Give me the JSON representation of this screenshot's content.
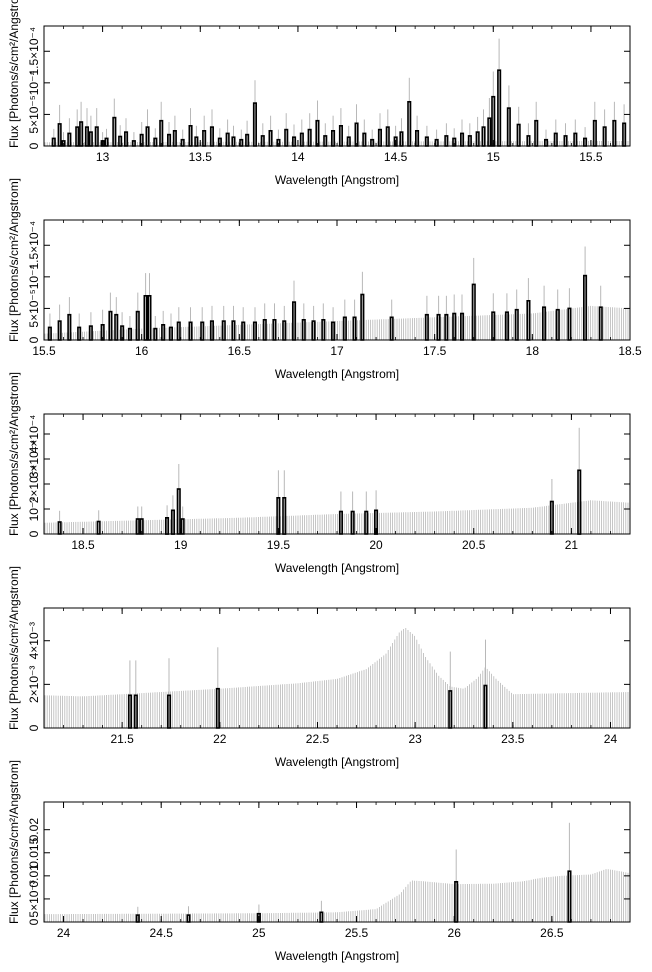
{
  "figure": {
    "xlabel": "Wavelength [Angstrom]",
    "ylabel": "Flux [Photons/s/cm²/Angstrom]",
    "colors": {
      "data": "#000000",
      "error_bar": "#b8b8b8",
      "frame": "#000000"
    }
  },
  "chart_data": [
    {
      "type": "bar",
      "panel": 1,
      "xlabel": "Wavelength [Angstrom]",
      "ylabel": "Flux [Photons/s/cm²/Angstrom]",
      "xlim": [
        12.7,
        15.7
      ],
      "ylim": [
        0,
        0.00019
      ],
      "xticks": [
        13,
        13.5,
        14,
        14.5,
        15,
        15.5
      ],
      "xtick_labels": [
        "13",
        "13.5",
        "14",
        "14.5",
        "15",
        "15.5"
      ],
      "yticks": [
        0,
        5e-05,
        0.0001,
        0.00015
      ],
      "ytick_labels": [
        "0",
        "5×10⁻⁵",
        "10⁻⁴",
        "1.5×10⁻⁴"
      ],
      "grid": false,
      "x": [
        12.75,
        12.78,
        12.8,
        12.83,
        12.87,
        12.89,
        12.92,
        12.94,
        12.97,
        13.0,
        13.02,
        13.06,
        13.09,
        13.12,
        13.16,
        13.2,
        13.23,
        13.27,
        13.3,
        13.34,
        13.37,
        13.41,
        13.45,
        13.48,
        13.52,
        13.56,
        13.6,
        13.64,
        13.67,
        13.71,
        13.74,
        13.78,
        13.82,
        13.86,
        13.9,
        13.94,
        13.98,
        14.02,
        14.06,
        14.1,
        14.14,
        14.18,
        14.22,
        14.26,
        14.3,
        14.34,
        14.38,
        14.42,
        14.46,
        14.5,
        14.53,
        14.57,
        14.61,
        14.66,
        14.71,
        14.76,
        14.8,
        14.84,
        14.88,
        14.92,
        14.95,
        14.98,
        15.0,
        15.03,
        15.08,
        15.13,
        15.18,
        15.22,
        15.27,
        15.32,
        15.37,
        15.42,
        15.47,
        15.52,
        15.57,
        15.62,
        15.67
      ],
      "values": [
        1.2e-05,
        3.5e-05,
        8e-06,
        2e-05,
        3e-05,
        3.8e-05,
        3e-05,
        2.2e-05,
        3e-05,
        8e-06,
        1.2e-05,
        4.5e-05,
        1.5e-05,
        2.2e-05,
        8e-06,
        1.8e-05,
        3e-05,
        1.2e-05,
        4e-05,
        1.8e-05,
        2.4e-05,
        1e-05,
        3.2e-05,
        1.4e-05,
        2.4e-05,
        3e-05,
        1.2e-05,
        2e-05,
        1.4e-05,
        1e-05,
        1.8e-05,
        6.8e-05,
        1.6e-05,
        2.4e-05,
        1e-05,
        2.6e-05,
        1.4e-05,
        2e-05,
        2.6e-05,
        4e-05,
        1.6e-05,
        2.4e-05,
        3.2e-05,
        1.4e-05,
        3.6e-05,
        2e-05,
        1e-05,
        2.6e-05,
        3e-05,
        1.4e-05,
        2.2e-05,
        7e-05,
        2.4e-05,
        1.4e-05,
        1e-05,
        1.6e-05,
        1.2e-05,
        2e-05,
        1.6e-05,
        2.2e-05,
        3e-05,
        4.4e-05,
        7.8e-05,
        0.00012,
        6e-05,
        3.4e-05,
        1.6e-05,
        4e-05,
        1e-05,
        2e-05,
        1.6e-05,
        2e-05,
        1.2e-05,
        4e-05,
        3e-05,
        4e-05,
        3.6e-05
      ],
      "errors": [
        1.5e-05,
        3e-05,
        1.4e-05,
        2.4e-05,
        2.8e-05,
        3.2e-05,
        3e-05,
        2.6e-05,
        3e-05,
        1.4e-05,
        1.5e-05,
        3e-05,
        1.8e-05,
        2.2e-05,
        1.4e-05,
        2e-05,
        2.8e-05,
        1.6e-05,
        3e-05,
        2e-05,
        2.4e-05,
        1.6e-05,
        2.8e-05,
        1.8e-05,
        2.4e-05,
        2.8e-05,
        1.6e-05,
        2.2e-05,
        1.8e-05,
        1.6e-05,
        2.2e-05,
        3.6e-05,
        2e-05,
        2.4e-05,
        1.6e-05,
        2.6e-05,
        2e-05,
        2.2e-05,
        2.6e-05,
        3.2e-05,
        2e-05,
        2.4e-05,
        2.8e-05,
        1.8e-05,
        3e-05,
        2.2e-05,
        1.6e-05,
        2.6e-05,
        2.8e-05,
        1.8e-05,
        2.2e-05,
        3.8e-05,
        2.4e-05,
        1.8e-05,
        1.6e-05,
        2e-05,
        1.6e-05,
        2.2e-05,
        2e-05,
        2.4e-05,
        2.8e-05,
        3.2e-05,
        4e-05,
        5e-05,
        3.6e-05,
        2.8e-05,
        2e-05,
        3e-05,
        1.6e-05,
        2.2e-05,
        2e-05,
        2.2e-05,
        1.8e-05,
        3e-05,
        2.8e-05,
        3e-05,
        3e-05
      ],
      "background": {
        "x": [
          12.7,
          15.7
        ],
        "values": [
          6e-06,
          8e-06
        ]
      }
    },
    {
      "type": "bar",
      "panel": 2,
      "xlabel": "Wavelength [Angstrom]",
      "ylabel": "Flux [Photons/s/cm²/Angstrom]",
      "xlim": [
        15.5,
        18.5
      ],
      "ylim": [
        0,
        0.00019
      ],
      "xticks": [
        15.5,
        16,
        16.5,
        17,
        17.5,
        18,
        18.5
      ],
      "xtick_labels": [
        "15.5",
        "16",
        "16.5",
        "17",
        "17.5",
        "18",
        "18.5"
      ],
      "yticks": [
        0,
        5e-05,
        0.0001,
        0.00015
      ],
      "ytick_labels": [
        "0",
        "5×10⁻⁵",
        "10⁻⁴",
        "1.5×10⁻⁴"
      ],
      "grid": false,
      "x": [
        15.53,
        15.58,
        15.63,
        15.68,
        15.74,
        15.8,
        15.84,
        15.87,
        15.9,
        15.94,
        15.98,
        16.02,
        16.04,
        16.07,
        16.11,
        16.15,
        16.19,
        16.25,
        16.31,
        16.36,
        16.42,
        16.47,
        16.52,
        16.58,
        16.63,
        16.68,
        16.73,
        16.78,
        16.83,
        16.88,
        16.93,
        16.98,
        17.04,
        17.09,
        17.13,
        17.28,
        17.46,
        17.52,
        17.56,
        17.6,
        17.64,
        17.7,
        17.8,
        17.87,
        17.92,
        17.98,
        18.06,
        18.13,
        18.19,
        18.27,
        18.35
      ],
      "values": [
        2e-05,
        3e-05,
        4e-05,
        2e-05,
        2.2e-05,
        2.4e-05,
        4.5e-05,
        4e-05,
        2.2e-05,
        1.8e-05,
        4.5e-05,
        7e-05,
        7e-05,
        1.8e-05,
        2.4e-05,
        2e-05,
        2.8e-05,
        2.8e-05,
        2.8e-05,
        3e-05,
        3e-05,
        3e-05,
        2.8e-05,
        2.8e-05,
        3.2e-05,
        3.2e-05,
        3e-05,
        6e-05,
        3.2e-05,
        3e-05,
        3.2e-05,
        2.8e-05,
        3.6e-05,
        3.6e-05,
        7.2e-05,
        3.6e-05,
        4e-05,
        4e-05,
        4e-05,
        4.2e-05,
        4.2e-05,
        8.8e-05,
        4.4e-05,
        4.4e-05,
        4.8e-05,
        6.2e-05,
        5.2e-05,
        4.8e-05,
        5e-05,
        0.000102,
        5.2e-05
      ],
      "errors": [
        2.2e-05,
        2.6e-05,
        2.8e-05,
        2.2e-05,
        2.2e-05,
        2.4e-05,
        3e-05,
        2.8e-05,
        2.2e-05,
        2e-05,
        3e-05,
        3.6e-05,
        3.6e-05,
        2e-05,
        2.2e-05,
        2.2e-05,
        2.4e-05,
        2.4e-05,
        2.4e-05,
        2.4e-05,
        2.4e-05,
        2.4e-05,
        2.4e-05,
        2.4e-05,
        2.6e-05,
        2.6e-05,
        2.4e-05,
        3.4e-05,
        2.6e-05,
        2.4e-05,
        2.6e-05,
        2.4e-05,
        2.8e-05,
        2.8e-05,
        3.6e-05,
        2.8e-05,
        3e-05,
        3e-05,
        3e-05,
        3e-05,
        3e-05,
        4.2e-05,
        3e-05,
        3e-05,
        3.2e-05,
        3.6e-05,
        3.4e-05,
        3.2e-05,
        3.2e-05,
        4.6e-05,
        3.4e-05
      ],
      "background": {
        "x": [
          15.5,
          16.0,
          16.5,
          17.0,
          17.5,
          18.0,
          18.3,
          18.5
        ],
        "values": [
          1e-05,
          1.8e-05,
          2.4e-05,
          3e-05,
          3.6e-05,
          4.2e-05,
          5.4e-05,
          5e-05
        ]
      }
    },
    {
      "type": "bar",
      "panel": 3,
      "xlabel": "Wavelength [Angstrom]",
      "ylabel": "Flux [Photons/s/cm²/Angstrom]",
      "xlim": [
        18.3,
        21.3
      ],
      "ylim": [
        0,
        0.00048
      ],
      "xticks": [
        18.5,
        19,
        19.5,
        20,
        20.5,
        21
      ],
      "xtick_labels": [
        "18.5",
        "19",
        "19.5",
        "20",
        "20.5",
        "21"
      ],
      "yticks": [
        0,
        0.0001,
        0.0002,
        0.0003,
        0.0004
      ],
      "ytick_labels": [
        "0",
        "10⁻⁴",
        "2×10⁻⁴",
        "3×10⁻⁴",
        "4×10⁻⁴"
      ],
      "grid": false,
      "x": [
        18.38,
        18.58,
        18.78,
        18.8,
        18.93,
        18.96,
        18.99,
        19.01,
        19.5,
        19.53,
        19.82,
        19.88,
        19.95,
        20.0,
        20.9,
        21.04
      ],
      "values": [
        4.8e-05,
        5e-05,
        6e-05,
        6e-05,
        6.5e-05,
        9.5e-05,
        0.00018,
        6e-05,
        0.000145,
        0.000145,
        9e-05,
        9e-05,
        9e-05,
        9.5e-05,
        0.00013,
        0.000255
      ],
      "errors": [
        4.5e-05,
        4.5e-05,
        5e-05,
        5e-05,
        5e-05,
        6e-05,
        0.0001,
        5e-05,
        0.00011,
        0.00011,
        8e-05,
        8e-05,
        8e-05,
        8e-05,
        9e-05,
        0.00017
      ],
      "background": {
        "x": [
          18.3,
          18.8,
          19.3,
          19.8,
          20.3,
          20.8,
          21.1,
          21.3
        ],
        "values": [
          4.5e-05,
          5.5e-05,
          6.5e-05,
          8e-05,
          9e-05,
          0.000105,
          0.000135,
          0.000125
        ]
      }
    },
    {
      "type": "bar",
      "panel": 4,
      "xlabel": "Wavelength [Angstrom]",
      "ylabel": "Flux [Photons/s/cm²/Angstrom]",
      "xlim": [
        21.1,
        24.1
      ],
      "ylim": [
        0,
        0.0055
      ],
      "xticks": [
        21.5,
        22,
        22.5,
        23,
        23.5,
        24
      ],
      "xtick_labels": [
        "21.5",
        "22",
        "22.5",
        "23",
        "23.5",
        "24"
      ],
      "yticks": [
        0,
        0.002,
        0.004
      ],
      "ytick_labels": [
        "0",
        "2×10⁻³",
        "4×10⁻³"
      ],
      "grid": false,
      "x": [
        21.54,
        21.57,
        21.74,
        21.99,
        23.18,
        23.36
      ],
      "values": [
        0.0015,
        0.0015,
        0.0015,
        0.0018,
        0.0017,
        0.00195
      ],
      "errors": [
        0.0016,
        0.0016,
        0.0017,
        0.0019,
        0.0018,
        0.0021
      ],
      "background": {
        "x": [
          21.1,
          21.3,
          21.6,
          22.0,
          22.4,
          22.6,
          22.75,
          22.85,
          22.92,
          22.95,
          23.0,
          23.05,
          23.12,
          23.18,
          23.25,
          23.32,
          23.36,
          23.42,
          23.5,
          23.8,
          24.1
        ],
        "values": [
          0.0015,
          0.00145,
          0.0016,
          0.0018,
          0.00205,
          0.00225,
          0.0027,
          0.0034,
          0.0044,
          0.0046,
          0.0042,
          0.0033,
          0.0024,
          0.0019,
          0.0018,
          0.0023,
          0.0028,
          0.0022,
          0.00155,
          0.0016,
          0.00165
        ]
      }
    },
    {
      "type": "bar",
      "panel": 5,
      "xlabel": "Wavelength [Angstrom]",
      "ylabel": "Flux [Photons/s/cm²/Angstrom]",
      "xlim": [
        23.9,
        26.9
      ],
      "ylim": [
        0,
        0.026
      ],
      "xticks": [
        24,
        24.5,
        25,
        25.5,
        26,
        26.5
      ],
      "xtick_labels": [
        "24",
        "24.5",
        "25",
        "25.5",
        "26",
        "26.5"
      ],
      "yticks": [
        0,
        0.005,
        0.01,
        0.015,
        0.02
      ],
      "ytick_labels": [
        "0",
        "5×10⁻³",
        "0.01",
        "0.015",
        "0.02"
      ],
      "grid": false,
      "x": [
        24.38,
        24.64,
        25.0,
        25.32,
        26.01,
        26.59
      ],
      "values": [
        0.0015,
        0.0015,
        0.0018,
        0.0021,
        0.0087,
        0.011
      ],
      "errors": [
        0.0018,
        0.0019,
        0.002,
        0.0025,
        0.007,
        0.0105
      ],
      "background": {
        "x": [
          23.9,
          24.5,
          25.0,
          25.4,
          25.6,
          25.72,
          25.78,
          25.85,
          26.0,
          26.2,
          26.35,
          26.45,
          26.55,
          26.7,
          26.78,
          26.85,
          26.9
        ],
        "values": [
          0.0017,
          0.0018,
          0.0019,
          0.0021,
          0.0028,
          0.006,
          0.009,
          0.0088,
          0.0082,
          0.0083,
          0.0088,
          0.0096,
          0.01,
          0.0103,
          0.0115,
          0.011,
          0.0106
        ]
      }
    }
  ]
}
